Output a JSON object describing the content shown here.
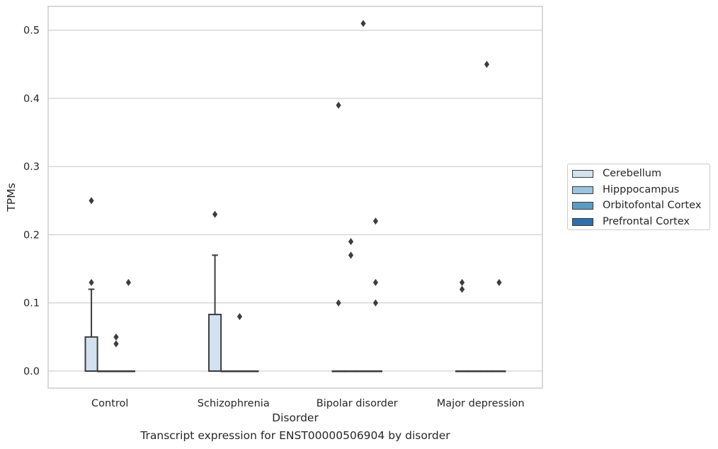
{
  "chart_data": {
    "type": "box",
    "xlabel": "Disorder",
    "ylabel": "TPMs",
    "caption": "Transcript expression for ENST00000506904 by disorder",
    "categories": [
      "Control",
      "Schizophrenia",
      "Bipolar disorder",
      "Major depression"
    ],
    "ylim": [
      -0.025,
      0.535
    ],
    "yticks": [
      "0.0",
      "0.1",
      "0.2",
      "0.3",
      "0.4",
      "0.5"
    ],
    "grid": "horizontal",
    "legend_position": "center-right outside",
    "series": [
      {
        "name": "Cerebellum",
        "color": "#d2e2f0",
        "boxes": [
          {
            "q1": 0.0,
            "median": 0.0,
            "q3": 0.05,
            "whisker_low": 0.0,
            "whisker_high": 0.12,
            "outliers": [
              0.25,
              0.13
            ]
          },
          {
            "q1": 0.0,
            "median": 0.0,
            "q3": 0.083,
            "whisker_low": 0.0,
            "whisker_high": 0.17,
            "outliers": [
              0.23
            ]
          },
          {
            "q1": 0.0,
            "median": 0.0,
            "q3": 0.0,
            "whisker_low": 0.0,
            "whisker_high": 0.0,
            "outliers": [
              0.39,
              0.1
            ]
          },
          {
            "q1": 0.0,
            "median": 0.0,
            "q3": 0.0,
            "whisker_low": 0.0,
            "whisker_high": 0.0,
            "outliers": [
              0.13,
              0.12
            ]
          }
        ]
      },
      {
        "name": "Hipppocampus",
        "color": "#9ac4e1",
        "boxes": [
          {
            "q1": 0.0,
            "median": 0.0,
            "q3": 0.0,
            "whisker_low": 0.0,
            "whisker_high": 0.0,
            "outliers": []
          },
          {
            "q1": 0.0,
            "median": 0.0,
            "q3": 0.0,
            "whisker_low": 0.0,
            "whisker_high": 0.0,
            "outliers": []
          },
          {
            "q1": 0.0,
            "median": 0.0,
            "q3": 0.0,
            "whisker_low": 0.0,
            "whisker_high": 0.0,
            "outliers": [
              0.19,
              0.17
            ]
          },
          {
            "q1": 0.0,
            "median": 0.0,
            "q3": 0.0,
            "whisker_low": 0.0,
            "whisker_high": 0.0,
            "outliers": []
          }
        ]
      },
      {
        "name": "Orbitofontal Cortex",
        "color": "#5a9cc8",
        "boxes": [
          {
            "q1": 0.0,
            "median": 0.0,
            "q3": 0.0,
            "whisker_low": 0.0,
            "whisker_high": 0.0,
            "outliers": [
              0.05,
              0.04
            ]
          },
          {
            "q1": 0.0,
            "median": 0.0,
            "q3": 0.0,
            "whisker_low": 0.0,
            "whisker_high": 0.0,
            "outliers": [
              0.08
            ]
          },
          {
            "q1": 0.0,
            "median": 0.0,
            "q3": 0.0,
            "whisker_low": 0.0,
            "whisker_high": 0.0,
            "outliers": [
              0.51
            ]
          },
          {
            "q1": 0.0,
            "median": 0.0,
            "q3": 0.0,
            "whisker_low": 0.0,
            "whisker_high": 0.0,
            "outliers": [
              0.45
            ]
          }
        ]
      },
      {
        "name": "Prefrontal Cortex",
        "color": "#2b6fae",
        "boxes": [
          {
            "q1": 0.0,
            "median": 0.0,
            "q3": 0.0,
            "whisker_low": 0.0,
            "whisker_high": 0.0,
            "outliers": [
              0.13
            ]
          },
          {
            "q1": 0.0,
            "median": 0.0,
            "q3": 0.0,
            "whisker_low": 0.0,
            "whisker_high": 0.0,
            "outliers": []
          },
          {
            "q1": 0.0,
            "median": 0.0,
            "q3": 0.0,
            "whisker_low": 0.0,
            "whisker_high": 0.0,
            "outliers": [
              0.22,
              0.13,
              0.1
            ]
          },
          {
            "q1": 0.0,
            "median": 0.0,
            "q3": 0.0,
            "whisker_low": 0.0,
            "whisker_high": 0.0,
            "outliers": [
              0.13
            ]
          }
        ]
      }
    ]
  }
}
